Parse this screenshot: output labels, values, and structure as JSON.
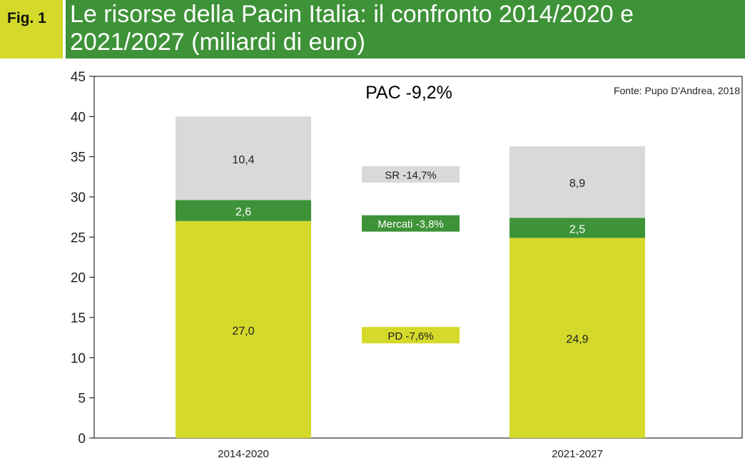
{
  "figure": {
    "label": "Fig. 1",
    "title": "Le risorse della Pacin Italia: il confronto 2014/2020 e 2021/2027 (miliardi di euro)"
  },
  "colors": {
    "pd": "#d4d92b",
    "mercati": "#3e9238",
    "sr": "#d9d9d9",
    "header_green": "#3e9238",
    "header_yellow": "#d4d92b"
  },
  "chart_data": {
    "type": "bar",
    "stacked": true,
    "categories": [
      "2014-2020",
      "2021-2027"
    ],
    "series": [
      {
        "name": "PD",
        "values": [
          27.0,
          24.9
        ],
        "labels": [
          "27,0",
          "24,9"
        ],
        "color": "#d4d92b"
      },
      {
        "name": "Mercati",
        "values": [
          2.6,
          2.5
        ],
        "labels": [
          "2,6",
          "2,5"
        ],
        "color": "#3e9238"
      },
      {
        "name": "SR",
        "values": [
          10.4,
          8.9
        ],
        "labels": [
          "10,4",
          "8,9"
        ],
        "color": "#d9d9d9"
      }
    ],
    "ylim": [
      0,
      45
    ],
    "yticks": [
      0,
      5,
      10,
      15,
      20,
      25,
      30,
      35,
      40,
      45
    ],
    "ytick_labels": [
      "0",
      "5",
      "10",
      "15",
      "20",
      "25",
      "30",
      "35",
      "40",
      "45"
    ],
    "xlabel": "",
    "ylabel": "",
    "annotations": {
      "headline": "PAC -9,2%",
      "source": "Fonte: Pupo D'Andrea, 2018",
      "changes": [
        {
          "series": "SR",
          "text": "SR -14,7%",
          "y": 32.8
        },
        {
          "series": "Mercati",
          "text": "Mercati -3,8%",
          "y": 26.7
        },
        {
          "series": "PD",
          "text": "PD -7,6%",
          "y": 12.8
        }
      ]
    },
    "grid": false,
    "legend": "none"
  }
}
